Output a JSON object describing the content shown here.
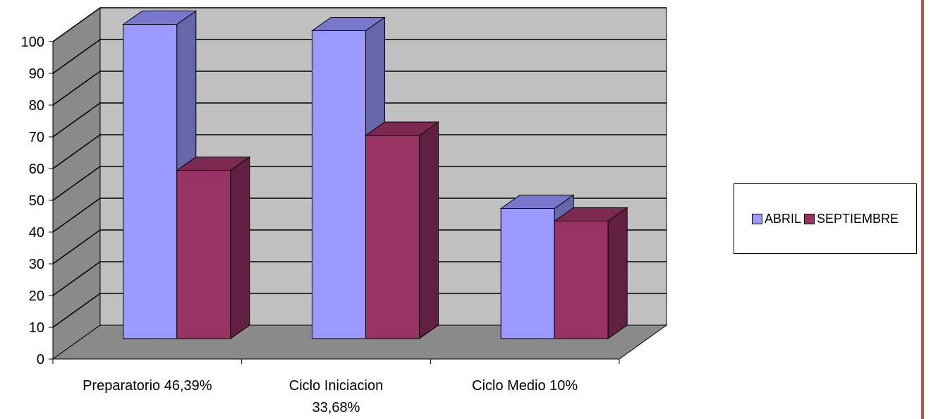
{
  "colors": {
    "page_rule": "#c0504d"
  },
  "chart_data": {
    "type": "bar",
    "categories": [
      "Preparatorio 46,39%",
      "Ciclo Iniciacion 33,68%",
      "Ciclo Medio  10%"
    ],
    "category_lines": [
      [
        "Preparatorio 46,39%"
      ],
      [
        "Ciclo Iniciacion",
        "33,68%"
      ],
      [
        "Ciclo Medio  10%"
      ]
    ],
    "series": [
      {
        "name": "ABRIL",
        "values": [
          99,
          97,
          41
        ],
        "color": "#9999ff",
        "side_color": "#6666aa",
        "top_color": "#7777cc"
      },
      {
        "name": "SEPTIEMBRE",
        "values": [
          53,
          64,
          37
        ],
        "color": "#993366",
        "side_color": "#611f42",
        "top_color": "#7d2a52"
      }
    ],
    "ylim": [
      0,
      100
    ],
    "yticks": [
      0,
      10,
      20,
      30,
      40,
      50,
      60,
      70,
      80,
      90,
      100
    ],
    "three_d": true,
    "grid": true,
    "legend_position": "right",
    "title": "",
    "xlabel": "",
    "ylabel": ""
  }
}
